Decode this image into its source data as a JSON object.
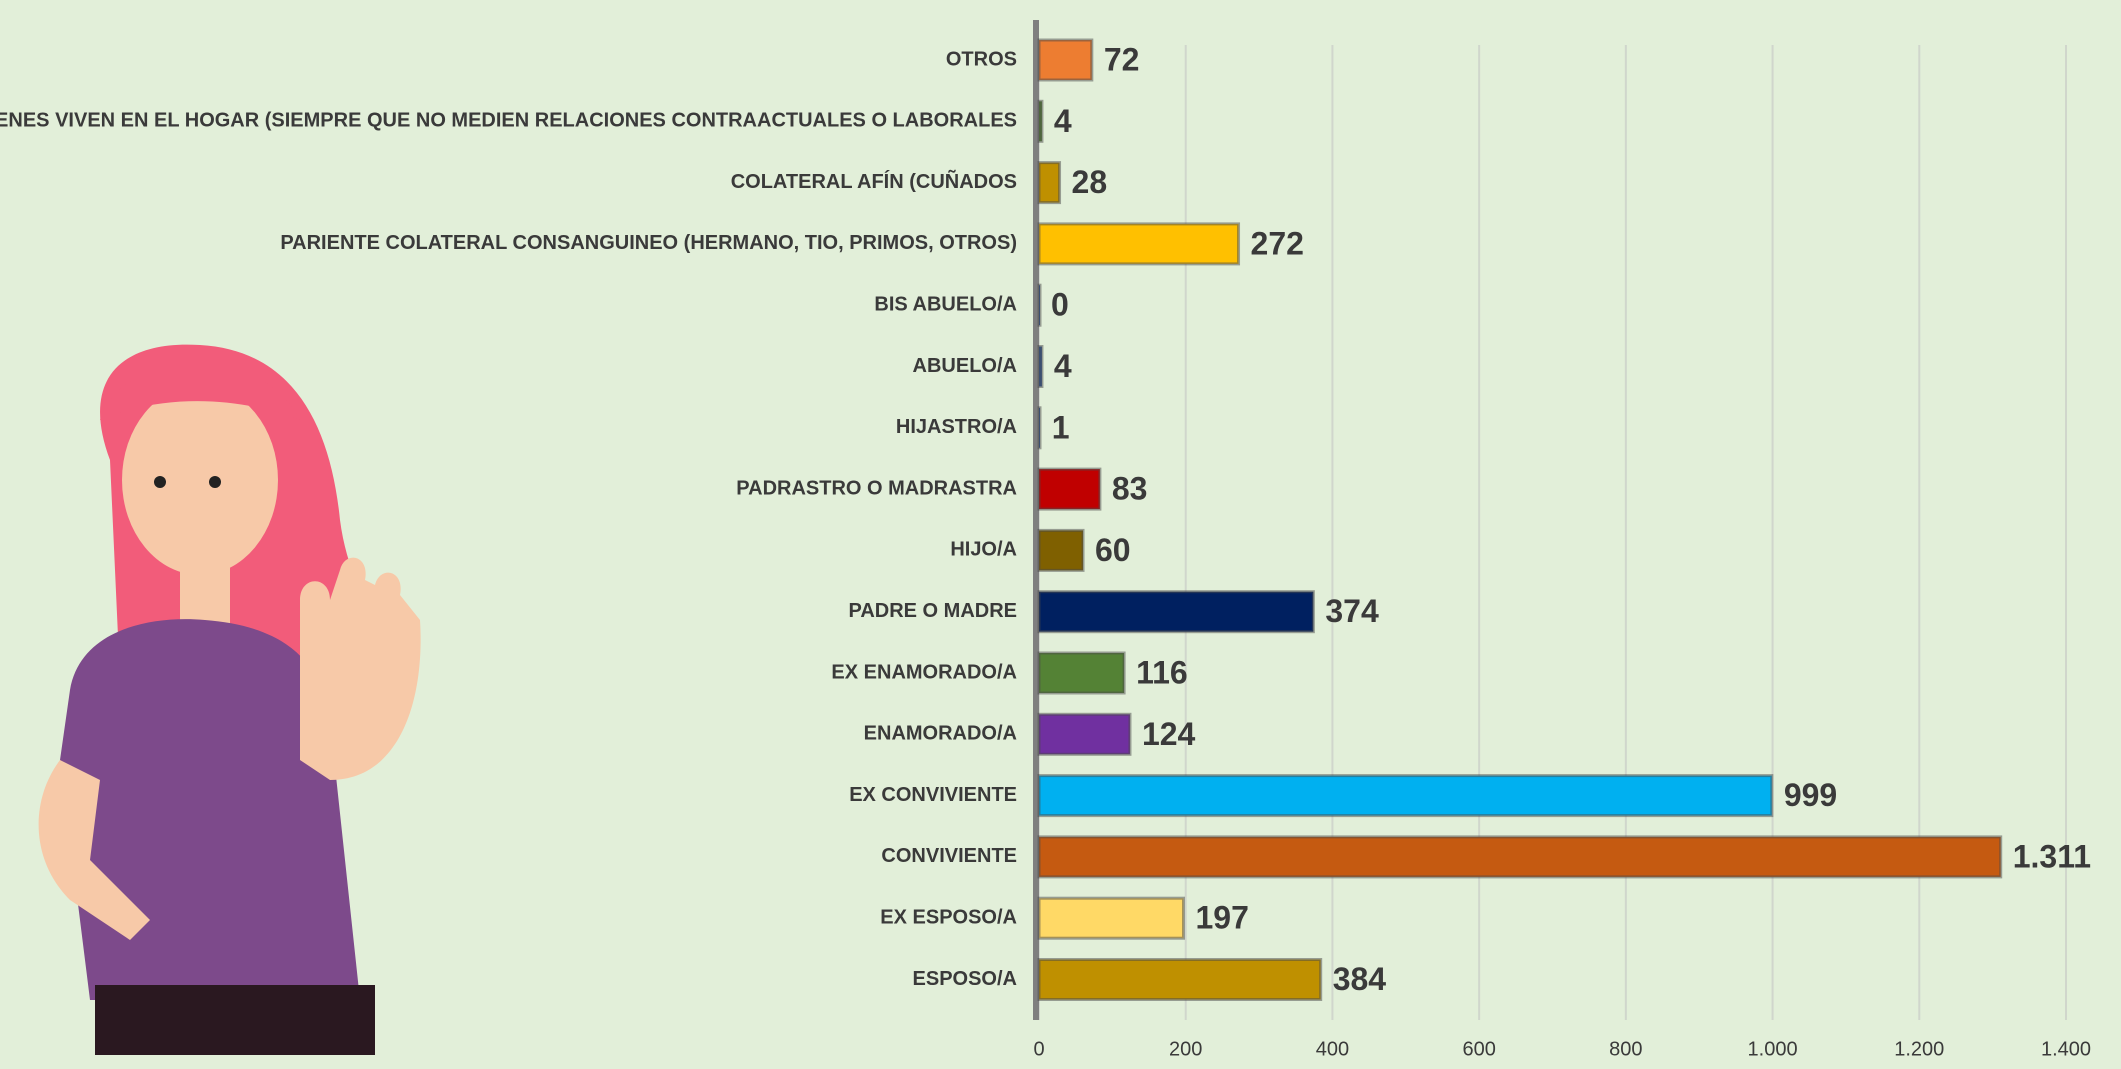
{
  "chart_data": {
    "type": "hbar",
    "categories": [
      "OTROS",
      "QUIENES VIVEN EN EL HOGAR (SIEMPRE QUE NO MEDIEN RELACIONES CONTRAACTUALES O LABORALES",
      "COLATERAL AFÍN (CUÑADOS",
      "PARIENTE COLATERAL CONSANGUINEO (HERMANO, TIO, PRIMOS, OTROS)",
      "BIS ABUELO/A",
      "ABUELO/A",
      "HIJASTRO/A",
      "PADRASTRO O MADRASTRA",
      "HIJO/A",
      "PADRE O MADRE",
      "EX ENAMORADO/A",
      "ENAMORADO/A",
      "EX CONVIVIENTE",
      "CONVIVIENTE",
      "EX ESPOSO/A",
      "ESPOSO/A"
    ],
    "values": [
      72,
      4,
      28,
      272,
      0,
      4,
      1,
      83,
      60,
      374,
      116,
      124,
      999,
      1311,
      197,
      384
    ],
    "value_labels": [
      "72",
      "4",
      "28",
      "272",
      "0",
      "4",
      "1",
      "83",
      "60",
      "374",
      "116",
      "124",
      "999",
      "1.311",
      "197",
      "384"
    ],
    "colors": [
      "#ed7d31",
      "#548235",
      "#bf9000",
      "#ffc000",
      "#2f5597",
      "#2f5597",
      "#2f5597",
      "#c00000",
      "#7f6000",
      "#002060",
      "#548235",
      "#7030a0",
      "#00b0f0",
      "#c55a11",
      "#ffd966",
      "#bf9000"
    ],
    "xlim": [
      0,
      1400
    ],
    "xticks": [
      0,
      200,
      400,
      600,
      800,
      {
        "value": 1000,
        "label": "1.000"
      },
      {
        "value": 1200,
        "label": "1.200"
      },
      {
        "value": 1400,
        "label": "1.400"
      }
    ],
    "grid": true
  }
}
